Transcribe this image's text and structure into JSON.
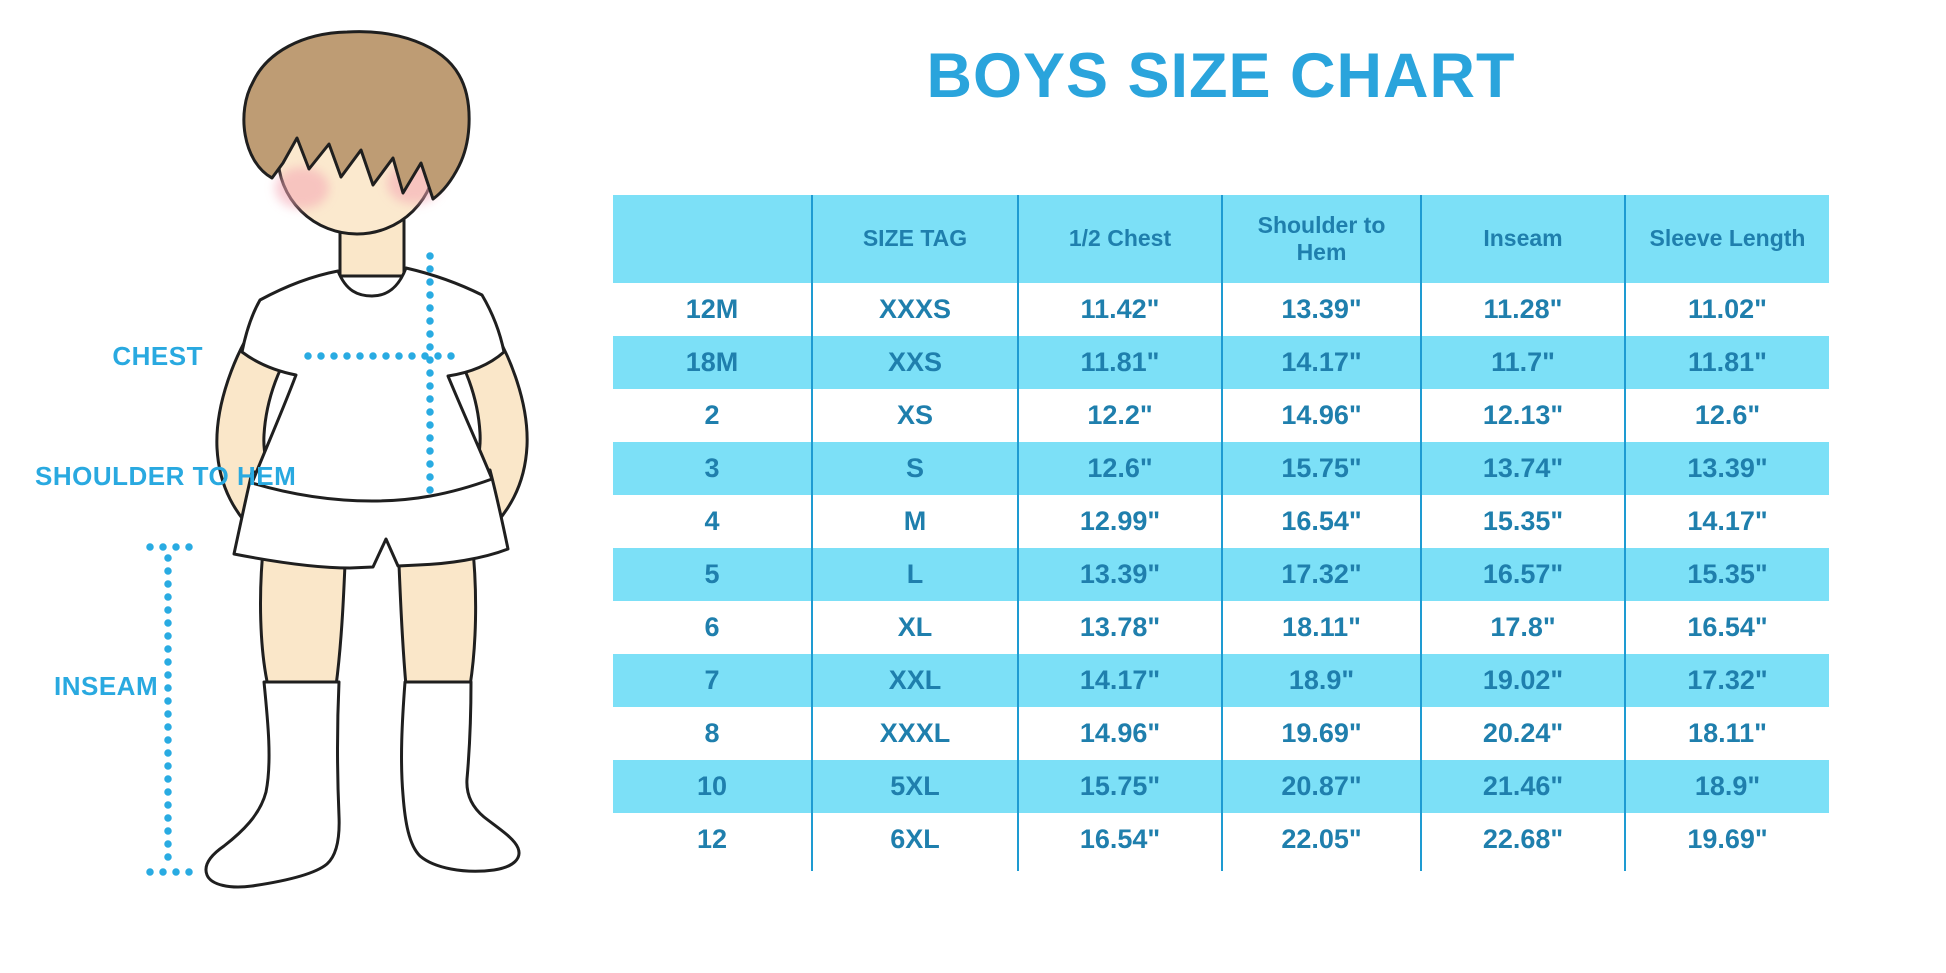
{
  "title": "BOYS SIZE CHART",
  "chart_data": {
    "type": "table",
    "title": "BOYS SIZE CHART",
    "columns": [
      "",
      "SIZE TAG",
      "1/2 Chest",
      "Shoulder to\nHem",
      "Inseam",
      "Sleeve Length"
    ],
    "rows": [
      [
        "12M",
        "XXXS",
        "11.42\"",
        "13.39\"",
        "11.28\"",
        "11.02\""
      ],
      [
        "18M",
        "XXS",
        "11.81\"",
        "14.17\"",
        "11.7\"",
        "11.81\""
      ],
      [
        "2",
        "XS",
        "12.2\"",
        "14.96\"",
        "12.13\"",
        "12.6\""
      ],
      [
        "3",
        "S",
        "12.6\"",
        "15.75\"",
        "13.74\"",
        "13.39\""
      ],
      [
        "4",
        "M",
        "12.99\"",
        "16.54\"",
        "15.35\"",
        "14.17\""
      ],
      [
        "5",
        "L",
        "13.39\"",
        "17.32\"",
        "16.57\"",
        "15.35\""
      ],
      [
        "6",
        "XL",
        "13.78\"",
        "18.11\"",
        "17.8\"",
        "16.54\""
      ],
      [
        "7",
        "XXL",
        "14.17\"",
        "18.9\"",
        "19.02\"",
        "17.32\""
      ],
      [
        "8",
        "XXXL",
        "14.96\"",
        "19.69\"",
        "20.24\"",
        "18.11\""
      ],
      [
        "10",
        "5XL",
        "15.75\"",
        "20.87\"",
        "21.46\"",
        "18.9\""
      ],
      [
        "12",
        "6XL",
        "16.54\"",
        "22.05\"",
        "22.68\"",
        "19.69\""
      ]
    ],
    "striping": "alternate rows highlighted",
    "legend_position": "none",
    "grid": "vertical column dividers only"
  },
  "diagram": {
    "labels": {
      "chest": "CHEST",
      "shoulder_to_hem": "SHOULDER TO HEM",
      "inseam": "INSEAM"
    }
  },
  "colors": {
    "title_blue": "#2AA4DC",
    "label_blue": "#29A9E0",
    "dotted_line_blue": "#29ABE2",
    "row_highlight": "#7CE0F7",
    "cell_text": "#1F7FAD",
    "divider": "#1E9BD2",
    "skin": "#FAE7C9",
    "hair": "#BE9C74",
    "blush": "#F4A6B4",
    "outline": "#1F1F1F"
  }
}
